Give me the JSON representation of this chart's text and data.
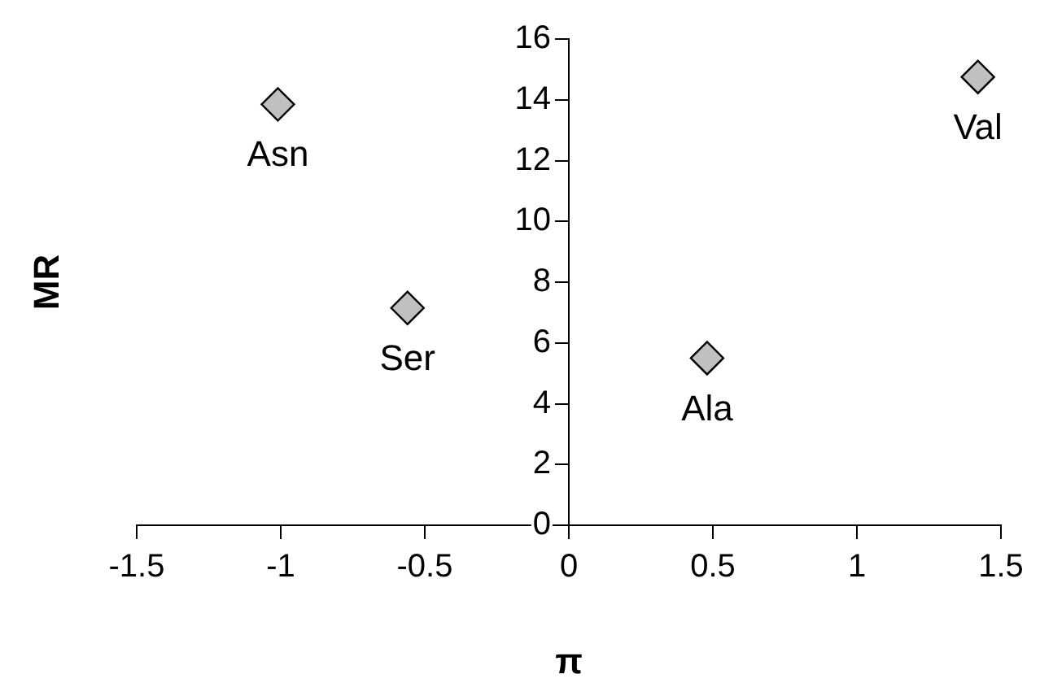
{
  "chart_data": {
    "type": "scatter",
    "xlabel": "π",
    "ylabel": "MR",
    "x": [
      -1.01,
      -0.56,
      0.48,
      1.42
    ],
    "values": [
      13.85,
      7.15,
      5.5,
      14.75
    ],
    "color": "#c0c0c0",
    "marker": "diamond",
    "grid": false,
    "legend": false,
    "xlim": [
      -1.5,
      1.5
    ],
    "xticks": [
      -1.5,
      -1,
      -0.5,
      0,
      0.5,
      1,
      1.5
    ],
    "ylim": [
      0,
      16
    ],
    "yticks": [
      0,
      2,
      4,
      6,
      8,
      10,
      12,
      14,
      16
    ],
    "annotations": [
      {
        "text": "Asn",
        "x": -1.01,
        "y": 13.85
      },
      {
        "text": "Ser",
        "x": -0.56,
        "y": 7.15
      },
      {
        "text": "Ala",
        "x": 0.48,
        "y": 5.5
      },
      {
        "text": "Val",
        "x": 1.42,
        "y": 14.75
      }
    ]
  }
}
